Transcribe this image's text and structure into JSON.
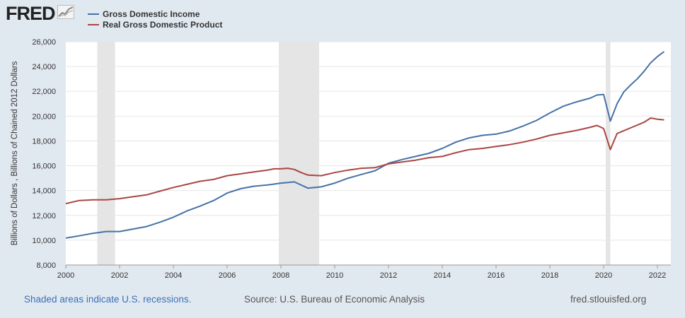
{
  "header": {
    "logo_text": "FRED",
    "logo_icon": "line-chart-icon"
  },
  "footer": {
    "recession_note": "Shaded areas indicate U.S. recessions.",
    "source": "Source: U.S. Bureau of Economic Analysis",
    "site": "fred.stlouisfed.org"
  },
  "colors": {
    "background": "#e1e9f0",
    "plot_background": "#ffffff",
    "gdi": "#4572a7",
    "gdp": "#aa4643",
    "recession_shade": "#e5e5e5"
  },
  "chart_data": {
    "type": "line",
    "title": "",
    "xlabel": "",
    "ylabel": "Billions of Dollars , Billions of Chained 2012 Dollars",
    "xlim": [
      2000.0,
      2022.5
    ],
    "ylim": [
      8000,
      26000
    ],
    "x_ticks": [
      2000,
      2002,
      2004,
      2006,
      2008,
      2010,
      2012,
      2014,
      2016,
      2018,
      2020,
      2022
    ],
    "y_ticks": [
      8000,
      10000,
      12000,
      14000,
      16000,
      18000,
      20000,
      22000,
      24000,
      26000
    ],
    "y_tick_labels": [
      "8,000",
      "10,000",
      "12,000",
      "14,000",
      "16,000",
      "18,000",
      "20,000",
      "22,000",
      "24,000",
      "26,000"
    ],
    "grid": "horizontal",
    "legend": "top-left",
    "recessions": [
      [
        2001.17,
        2001.83
      ],
      [
        2007.92,
        2009.42
      ],
      [
        2020.08,
        2020.25
      ]
    ],
    "series": [
      {
        "name": "Gross Domestic Income",
        "color": "#4572a7",
        "points": [
          [
            2000.0,
            10170
          ],
          [
            2000.5,
            10350
          ],
          [
            2001.0,
            10550
          ],
          [
            2001.5,
            10700
          ],
          [
            2002.0,
            10700
          ],
          [
            2002.5,
            10900
          ],
          [
            2003.0,
            11100
          ],
          [
            2003.5,
            11450
          ],
          [
            2004.0,
            11850
          ],
          [
            2004.5,
            12350
          ],
          [
            2005.0,
            12750
          ],
          [
            2005.5,
            13200
          ],
          [
            2006.0,
            13800
          ],
          [
            2006.5,
            14150
          ],
          [
            2007.0,
            14350
          ],
          [
            2007.5,
            14450
          ],
          [
            2008.0,
            14600
          ],
          [
            2008.5,
            14700
          ],
          [
            2009.0,
            14200
          ],
          [
            2009.5,
            14300
          ],
          [
            2010.0,
            14600
          ],
          [
            2010.5,
            15000
          ],
          [
            2011.0,
            15300
          ],
          [
            2011.5,
            15600
          ],
          [
            2012.0,
            16200
          ],
          [
            2012.5,
            16500
          ],
          [
            2013.0,
            16750
          ],
          [
            2013.5,
            17000
          ],
          [
            2014.0,
            17400
          ],
          [
            2014.5,
            17900
          ],
          [
            2015.0,
            18250
          ],
          [
            2015.5,
            18450
          ],
          [
            2016.0,
            18550
          ],
          [
            2016.5,
            18800
          ],
          [
            2017.0,
            19200
          ],
          [
            2017.5,
            19650
          ],
          [
            2018.0,
            20250
          ],
          [
            2018.5,
            20800
          ],
          [
            2019.0,
            21150
          ],
          [
            2019.5,
            21450
          ],
          [
            2019.75,
            21700
          ],
          [
            2020.0,
            21750
          ],
          [
            2020.25,
            19600
          ],
          [
            2020.5,
            21000
          ],
          [
            2020.75,
            21950
          ],
          [
            2021.0,
            22500
          ],
          [
            2021.25,
            23000
          ],
          [
            2021.5,
            23600
          ],
          [
            2021.75,
            24300
          ],
          [
            2022.0,
            24800
          ],
          [
            2022.25,
            25200
          ]
        ]
      },
      {
        "name": "Real Gross Domestic Product",
        "color": "#aa4643",
        "points": [
          [
            2000.0,
            12950
          ],
          [
            2000.5,
            13200
          ],
          [
            2001.0,
            13250
          ],
          [
            2001.5,
            13250
          ],
          [
            2002.0,
            13350
          ],
          [
            2002.5,
            13500
          ],
          [
            2003.0,
            13650
          ],
          [
            2003.5,
            13950
          ],
          [
            2004.0,
            14250
          ],
          [
            2004.5,
            14500
          ],
          [
            2005.0,
            14750
          ],
          [
            2005.5,
            14900
          ],
          [
            2006.0,
            15200
          ],
          [
            2006.5,
            15350
          ],
          [
            2007.0,
            15500
          ],
          [
            2007.5,
            15650
          ],
          [
            2007.75,
            15750
          ],
          [
            2008.0,
            15750
          ],
          [
            2008.25,
            15800
          ],
          [
            2008.5,
            15700
          ],
          [
            2008.75,
            15450
          ],
          [
            2009.0,
            15250
          ],
          [
            2009.5,
            15200
          ],
          [
            2010.0,
            15450
          ],
          [
            2010.5,
            15650
          ],
          [
            2011.0,
            15800
          ],
          [
            2011.5,
            15850
          ],
          [
            2012.0,
            16150
          ],
          [
            2012.5,
            16300
          ],
          [
            2013.0,
            16450
          ],
          [
            2013.5,
            16650
          ],
          [
            2014.0,
            16750
          ],
          [
            2014.5,
            17050
          ],
          [
            2015.0,
            17300
          ],
          [
            2015.5,
            17400
          ],
          [
            2016.0,
            17550
          ],
          [
            2016.5,
            17700
          ],
          [
            2017.0,
            17900
          ],
          [
            2017.5,
            18150
          ],
          [
            2018.0,
            18450
          ],
          [
            2018.5,
            18650
          ],
          [
            2019.0,
            18850
          ],
          [
            2019.5,
            19100
          ],
          [
            2019.75,
            19250
          ],
          [
            2020.0,
            19000
          ],
          [
            2020.25,
            17300
          ],
          [
            2020.5,
            18600
          ],
          [
            2021.0,
            19050
          ],
          [
            2021.5,
            19500
          ],
          [
            2021.75,
            19850
          ],
          [
            2022.0,
            19750
          ],
          [
            2022.25,
            19700
          ]
        ]
      }
    ]
  }
}
